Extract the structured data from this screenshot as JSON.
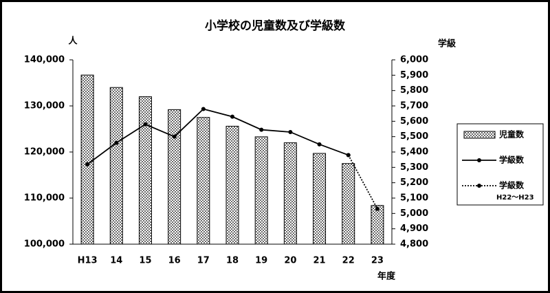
{
  "chart_data": {
    "type": "bar+line",
    "title": "小学校の児童数及び学級数",
    "y_label": "人",
    "y2_label": "学級",
    "x_label": "年度",
    "categories": [
      "H13",
      "14",
      "15",
      "16",
      "17",
      "18",
      "19",
      "20",
      "21",
      "22",
      "23"
    ],
    "series": [
      {
        "name": "児童数",
        "type": "bar",
        "color": "#000000",
        "values": [
          136700,
          134000,
          132000,
          129200,
          127500,
          125600,
          123300,
          122000,
          119700,
          117500,
          108400
        ]
      },
      {
        "name": "学級数",
        "type": "line",
        "axis": "y2",
        "color": "#000000",
        "dash": "solid",
        "values": [
          5320,
          5460,
          5580,
          5500,
          5680,
          5630,
          5545,
          5530,
          5450,
          5380,
          null
        ]
      },
      {
        "name": "学級数",
        "note": "H22～H23",
        "type": "line",
        "axis": "y2",
        "color": "#000000",
        "dash": "dotted",
        "values": [
          null,
          null,
          null,
          null,
          null,
          null,
          null,
          null,
          null,
          5380,
          5030
        ]
      }
    ],
    "ylim": [
      100000,
      140000
    ],
    "yticks": [
      {
        "value": 100000,
        "label": "100,000"
      },
      {
        "value": 110000,
        "label": "110,000"
      },
      {
        "value": 120000,
        "label": "120,000"
      },
      {
        "value": 130000,
        "label": "130,000"
      },
      {
        "value": 140000,
        "label": "140,000"
      }
    ],
    "y2lim": [
      4800,
      6000
    ],
    "y2ticks": [
      {
        "value": 4800,
        "label": "4,800"
      },
      {
        "value": 4900,
        "label": "4,900"
      },
      {
        "value": 5000,
        "label": "5,000"
      },
      {
        "value": 5100,
        "label": "5,100"
      },
      {
        "value": 5200,
        "label": "5,200"
      },
      {
        "value": 5300,
        "label": "5,300"
      },
      {
        "value": 5400,
        "label": "5,400"
      },
      {
        "value": 5500,
        "label": "5,500"
      },
      {
        "value": 5600,
        "label": "5,600"
      },
      {
        "value": 5700,
        "label": "5,700"
      },
      {
        "value": 5800,
        "label": "5,800"
      },
      {
        "value": 5900,
        "label": "5,900"
      },
      {
        "value": 6000,
        "label": "6,000"
      }
    ],
    "legend": "right"
  }
}
